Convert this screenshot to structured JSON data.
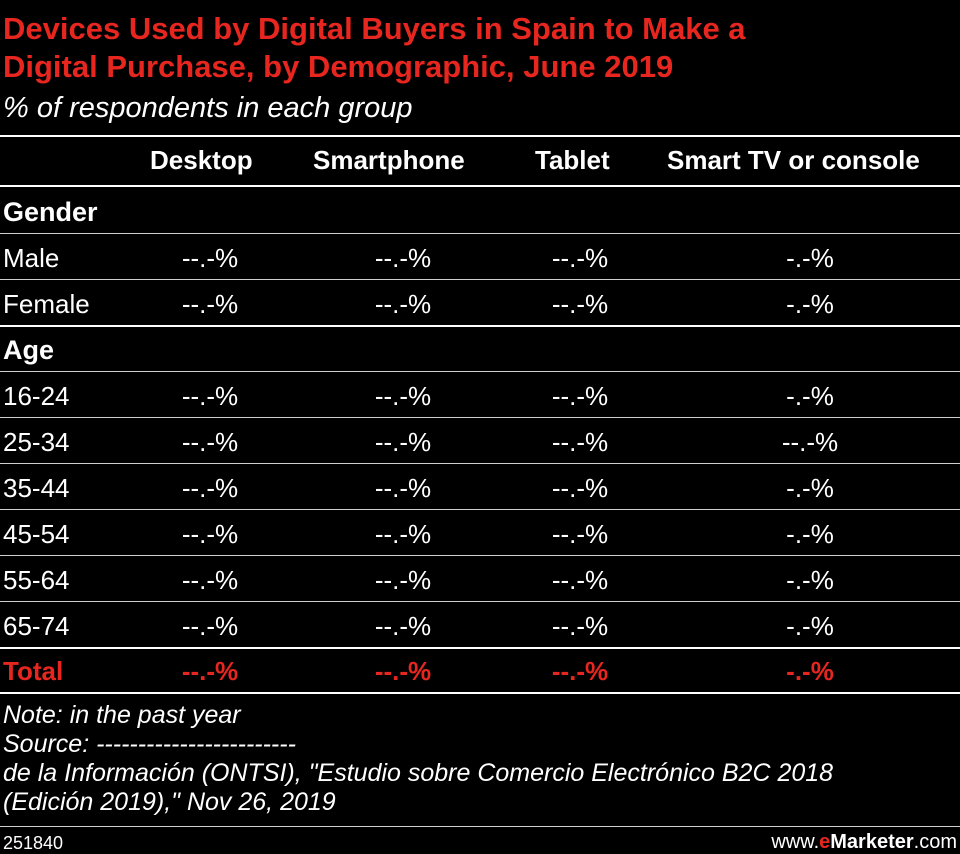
{
  "title_line1": "Devices Used by Digital Buyers in Spain to Make a",
  "title_line2": "Digital Purchase, by Demographic, June 2019",
  "subtitle": "% of respondents in each group",
  "columns": [
    "Desktop",
    "Smartphone",
    "Tablet",
    "Smart TV or console"
  ],
  "groups": [
    {
      "label": "Gender",
      "rows": [
        {
          "label": "Male",
          "values": [
            "--.-%",
            "--.-%",
            "--.-%",
            "-.-%"
          ]
        },
        {
          "label": "Female",
          "values": [
            "--.-%",
            "--.-%",
            "--.-%",
            "-.-%"
          ]
        }
      ]
    },
    {
      "label": "Age",
      "rows": [
        {
          "label": "16-24",
          "values": [
            "--.-%",
            "--.-%",
            "--.-%",
            "-.-%"
          ]
        },
        {
          "label": "25-34",
          "values": [
            "--.-%",
            "--.-%",
            "--.-%",
            "--.-%"
          ]
        },
        {
          "label": "35-44",
          "values": [
            "--.-%",
            "--.-%",
            "--.-%",
            "-.-%"
          ]
        },
        {
          "label": "45-54",
          "values": [
            "--.-%",
            "--.-%",
            "--.-%",
            "-.-%"
          ]
        },
        {
          "label": "55-64",
          "values": [
            "--.-%",
            "--.-%",
            "--.-%",
            "-.-%"
          ]
        },
        {
          "label": "65-74",
          "values": [
            "--.-%",
            "--.-%",
            "--.-%",
            "-.-%"
          ]
        }
      ]
    }
  ],
  "total": {
    "label": "Total",
    "values": [
      "--.-%",
      "--.-%",
      "--.-%",
      "-.-%"
    ]
  },
  "note": "Note: in the past year",
  "source_line1": "Source: ------------------------",
  "source_line2": "de la Información (ONTSI), \"Estudio sobre Comercio Electrónico B2C 2018",
  "source_line3": "(Edición 2019),\" Nov 26, 2019",
  "chart_id": "251840",
  "brand_prefix": "www.",
  "brand_e": "e",
  "brand_name": "Marketer",
  "brand_suffix": ".com",
  "colors": {
    "accent": "#e6261f",
    "background": "#000000",
    "text": "#ffffff"
  },
  "chart_data": {
    "type": "table",
    "title": "Devices Used by Digital Buyers in Spain to Make a Digital Purchase, by Demographic, June 2019",
    "subtitle": "% of respondents in each group",
    "columns": [
      "Desktop",
      "Smartphone",
      "Tablet",
      "Smart TV or console"
    ],
    "rows": [
      {
        "group": "Gender",
        "label": "Male",
        "values": [
          "--.-%",
          "--.-%",
          "--.-%",
          "-.-%"
        ]
      },
      {
        "group": "Gender",
        "label": "Female",
        "values": [
          "--.-%",
          "--.-%",
          "--.-%",
          "-.-%"
        ]
      },
      {
        "group": "Age",
        "label": "16-24",
        "values": [
          "--.-%",
          "--.-%",
          "--.-%",
          "-.-%"
        ]
      },
      {
        "group": "Age",
        "label": "25-34",
        "values": [
          "--.-%",
          "--.-%",
          "--.-%",
          "--.-%"
        ]
      },
      {
        "group": "Age",
        "label": "35-44",
        "values": [
          "--.-%",
          "--.-%",
          "--.-%",
          "-.-%"
        ]
      },
      {
        "group": "Age",
        "label": "45-54",
        "values": [
          "--.-%",
          "--.-%",
          "--.-%",
          "-.-%"
        ]
      },
      {
        "group": "Age",
        "label": "55-64",
        "values": [
          "--.-%",
          "--.-%",
          "--.-%",
          "-.-%"
        ]
      },
      {
        "group": "Age",
        "label": "65-74",
        "values": [
          "--.-%",
          "--.-%",
          "--.-%",
          "-.-%"
        ]
      },
      {
        "group": "",
        "label": "Total",
        "values": [
          "--.-%",
          "--.-%",
          "--.-%",
          "-.-%"
        ]
      }
    ]
  }
}
